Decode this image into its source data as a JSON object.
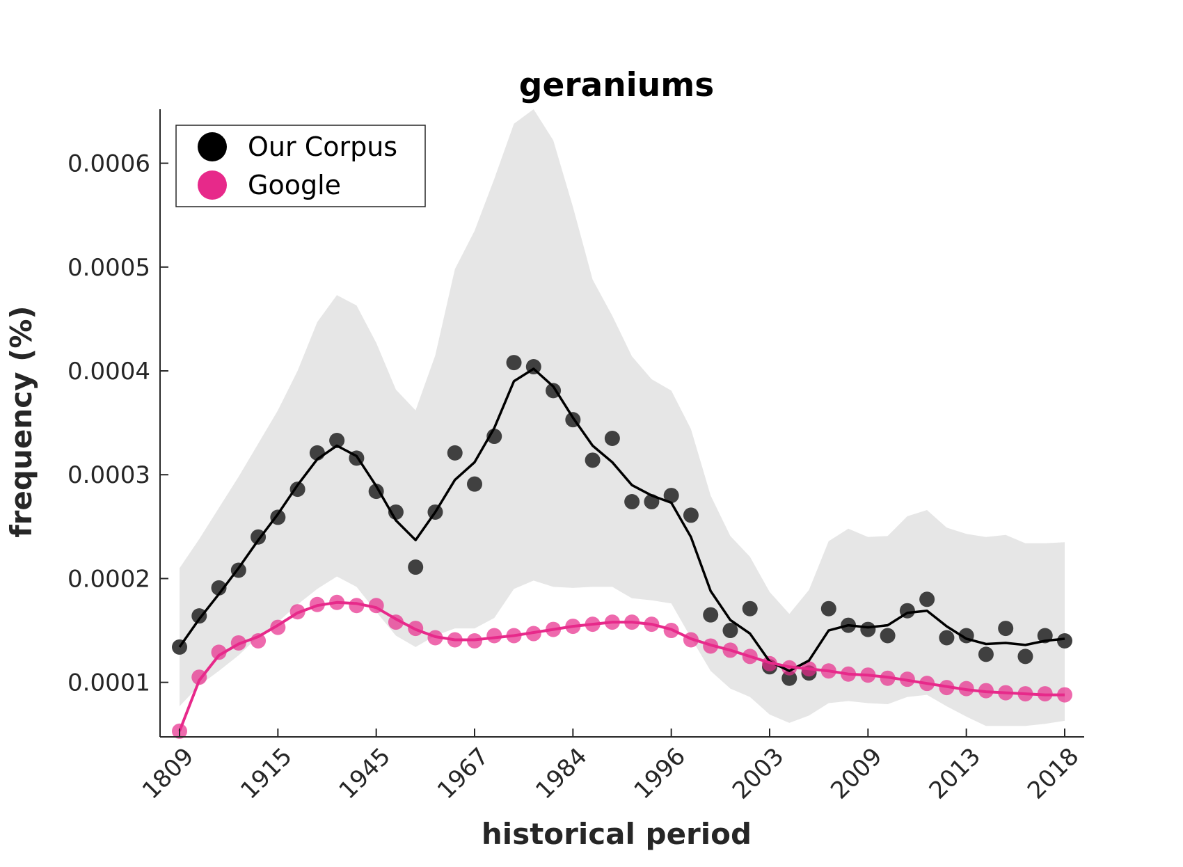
{
  "chart_data": {
    "type": "line",
    "title": "geraniums",
    "xlabel": "historical period",
    "ylabel": "frequency (%)",
    "x_tick_labels": [
      "1809",
      "1915",
      "1945",
      "1967",
      "1984",
      "1996",
      "2003",
      "2009",
      "2013",
      "2018"
    ],
    "y_ticks": [
      0.0001,
      0.0002,
      0.0003,
      0.0004,
      0.0005,
      0.0006
    ],
    "y_tick_labels": [
      "0.0001",
      "0.0002",
      "0.0003",
      "0.0004",
      "0.0005",
      "0.0006"
    ],
    "ylim": [
      4.75e-05,
      0.000652
    ],
    "n_points": 46,
    "grid": false,
    "legend": {
      "placement": "top-left",
      "entries": [
        "Our Corpus",
        "Google"
      ]
    },
    "colors": {
      "corpus": "#000000",
      "corpus_points": "#404040",
      "google": "#e7298a",
      "band": "#e6e6e6",
      "axis": "#262626"
    },
    "series": [
      {
        "name": "Our Corpus",
        "points": [
          0.000134,
          0.000164,
          0.000191,
          0.000208,
          0.00024,
          0.000259,
          0.000286,
          0.000321,
          0.000333,
          0.000316,
          0.000284,
          0.000264,
          0.000211,
          0.000264,
          0.000321,
          0.000291,
          0.000337,
          0.000408,
          0.000404,
          0.000381,
          0.000353,
          0.000314,
          0.000335,
          0.000274,
          0.000274,
          0.00028,
          0.000261,
          0.000165,
          0.00015,
          0.000171,
          0.000115,
          0.000104,
          0.000109,
          0.000171,
          0.000155,
          0.000151,
          0.000145,
          0.000169,
          0.00018,
          0.000143,
          0.000145,
          0.000127,
          0.000152,
          0.000125,
          0.000145,
          0.00014
        ],
        "trend": [
          0.000134,
          0.000161,
          0.000185,
          0.00021,
          0.000237,
          0.000262,
          0.00029,
          0.000315,
          0.000328,
          0.000318,
          0.000289,
          0.000256,
          0.000237,
          0.000264,
          0.000295,
          0.000312,
          0.000345,
          0.00039,
          0.000402,
          0.000385,
          0.000355,
          0.000328,
          0.000312,
          0.00029,
          0.00028,
          0.000273,
          0.00024,
          0.000188,
          0.00016,
          0.000147,
          0.00012,
          0.000111,
          0.000121,
          0.00015,
          0.000155,
          0.000153,
          0.000155,
          0.000167,
          0.000169,
          0.000154,
          0.000142,
          0.000137,
          0.000138,
          0.000136,
          0.00014,
          0.000142
        ],
        "band_upper": [
          0.00021,
          0.000238,
          0.000268,
          0.000298,
          0.00033,
          0.000362,
          0.0004,
          0.000447,
          0.000473,
          0.000463,
          0.000427,
          0.000382,
          0.000362,
          0.000415,
          0.000498,
          0.000535,
          0.000585,
          0.000638,
          0.000652,
          0.000622,
          0.000558,
          0.000488,
          0.000453,
          0.000414,
          0.000392,
          0.000381,
          0.000344,
          0.00028,
          0.000241,
          0.000221,
          0.000187,
          0.000166,
          0.000189,
          0.000236,
          0.000248,
          0.00024,
          0.000241,
          0.00026,
          0.000266,
          0.000249,
          0.000243,
          0.00024,
          0.000242,
          0.000234,
          0.000234,
          0.000235
        ],
        "band_lower": [
          7.7e-05,
          9.7e-05,
          0.000111,
          0.000126,
          0.000144,
          0.000158,
          0.000175,
          0.00019,
          0.000202,
          0.000192,
          0.000168,
          0.000145,
          0.000134,
          0.000145,
          0.000152,
          0.000152,
          0.000162,
          0.00019,
          0.000198,
          0.000192,
          0.000191,
          0.000192,
          0.000192,
          0.000181,
          0.000179,
          0.000176,
          0.000143,
          0.000111,
          9.4e-05,
          8.6e-05,
          6.9e-05,
          6.1e-05,
          6.8e-05,
          8e-05,
          8.2e-05,
          8e-05,
          7.9e-05,
          8.6e-05,
          8.8e-05,
          7.7e-05,
          6.7e-05,
          5.8e-05,
          5.8e-05,
          5.8e-05,
          6e-05,
          6.3e-05
        ]
      },
      {
        "name": "Google",
        "points": [
          5.3e-05,
          0.000105,
          0.000129,
          0.000138,
          0.00014,
          0.000153,
          0.000168,
          0.000175,
          0.000177,
          0.000174,
          0.000174,
          0.000158,
          0.000152,
          0.000143,
          0.000141,
          0.00014,
          0.000145,
          0.000145,
          0.000147,
          0.000151,
          0.000154,
          0.000156,
          0.000158,
          0.000158,
          0.000156,
          0.00015,
          0.000141,
          0.000135,
          0.000131,
          0.000125,
          0.000118,
          0.000114,
          0.000113,
          0.000111,
          0.000108,
          0.000107,
          0.000104,
          0.000103,
          9.9e-05,
          9.5e-05,
          9.4e-05,
          9.2e-05,
          9e-05,
          8.9e-05,
          8.9e-05,
          8.8e-05
        ],
        "trend": [
          5.3e-05,
          0.000102,
          0.000126,
          0.000137,
          0.000144,
          0.000155,
          0.000167,
          0.000174,
          0.000177,
          0.000176,
          0.000172,
          0.000161,
          0.000151,
          0.000144,
          0.000141,
          0.000141,
          0.000143,
          0.000145,
          0.000148,
          0.000151,
          0.000154,
          0.000156,
          0.000158,
          0.000158,
          0.000156,
          0.000151,
          0.000142,
          0.000136,
          0.000131,
          0.000125,
          0.000119,
          0.000115,
          0.000113,
          0.000111,
          0.000108,
          0.000107,
          0.000105,
          0.000102,
          9.9e-05,
          9.6e-05,
          9.3e-05,
          9.1e-05,
          9e-05,
          8.9e-05,
          8.8e-05,
          8.8e-05
        ]
      }
    ]
  }
}
